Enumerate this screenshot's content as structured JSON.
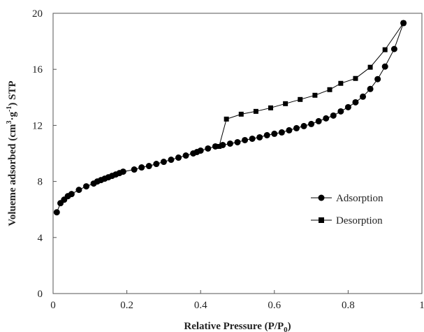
{
  "chart_data": {
    "type": "line",
    "xlabel": "Relative Pressure (P/P",
    "xlabel_sub": "0",
    "xlabel_close": ")",
    "ylabel": "Volueme adsorbed (cm",
    "ylabel_sup1": "3",
    "ylabel_mid": "·g",
    "ylabel_sup2": "-1",
    "ylabel_end": ") STP",
    "xlim": [
      0,
      1
    ],
    "ylim": [
      0,
      20
    ],
    "xticks": [
      "0",
      "0.2",
      "0.4",
      "0.6",
      "0.8",
      "1"
    ],
    "yticks": [
      "0",
      "4",
      "8",
      "12",
      "16",
      "20"
    ],
    "grid": false,
    "legend_position": "right",
    "series": [
      {
        "name": "Adsorption",
        "marker": "circle",
        "color": "#000000",
        "x": [
          0.01,
          0.02,
          0.03,
          0.04,
          0.05,
          0.07,
          0.09,
          0.11,
          0.12,
          0.13,
          0.14,
          0.15,
          0.16,
          0.17,
          0.18,
          0.19,
          0.22,
          0.24,
          0.26,
          0.28,
          0.3,
          0.32,
          0.34,
          0.36,
          0.38,
          0.39,
          0.4,
          0.42,
          0.44,
          0.46,
          0.48,
          0.5,
          0.52,
          0.54,
          0.56,
          0.58,
          0.6,
          0.62,
          0.64,
          0.66,
          0.68,
          0.7,
          0.72,
          0.74,
          0.76,
          0.78,
          0.8,
          0.82,
          0.84,
          0.86,
          0.88,
          0.9,
          0.925,
          0.95
        ],
        "y": [
          5.8,
          6.45,
          6.7,
          6.95,
          7.1,
          7.4,
          7.65,
          7.85,
          8.0,
          8.1,
          8.2,
          8.3,
          8.4,
          8.5,
          8.6,
          8.7,
          8.85,
          9.0,
          9.1,
          9.25,
          9.4,
          9.55,
          9.7,
          9.85,
          10.0,
          10.1,
          10.2,
          10.35,
          10.5,
          10.6,
          10.7,
          10.8,
          10.95,
          11.05,
          11.15,
          11.3,
          11.4,
          11.5,
          11.65,
          11.8,
          11.95,
          12.1,
          12.3,
          12.5,
          12.7,
          13.0,
          13.3,
          13.65,
          14.05,
          14.6,
          15.3,
          16.2,
          17.45,
          19.3
        ]
      },
      {
        "name": "Desorption",
        "marker": "square",
        "color": "#000000",
        "x": [
          0.95,
          0.9,
          0.86,
          0.82,
          0.78,
          0.75,
          0.71,
          0.67,
          0.63,
          0.59,
          0.55,
          0.51,
          0.47,
          0.45
        ],
        "y": [
          19.3,
          17.4,
          16.15,
          15.35,
          15.0,
          14.55,
          14.15,
          13.85,
          13.55,
          13.25,
          13.0,
          12.8,
          12.45,
          10.5
        ]
      }
    ]
  }
}
